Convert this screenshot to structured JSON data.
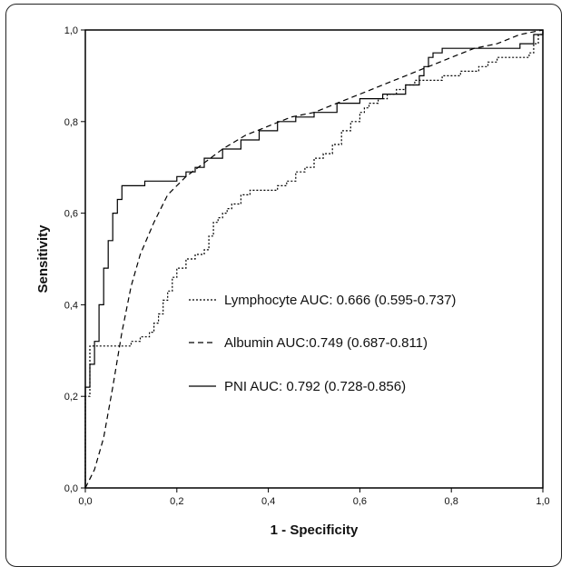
{
  "chart_data": {
    "type": "line",
    "title": "",
    "xlabel": "1 - Specificity",
    "ylabel": "Sensitivity",
    "xlim": [
      0,
      1
    ],
    "ylim": [
      0,
      1
    ],
    "xticks": [
      "0,0",
      "0,2",
      "0,4",
      "0,6",
      "0,8",
      "1,0"
    ],
    "yticks": [
      "0,0",
      "0,2",
      "0,4",
      "0,6",
      "0,8",
      "1,0"
    ],
    "grid": false,
    "legend_position": "center-right",
    "series": [
      {
        "name": "Lymphocyte AUC: 0.666 (0.595-0.737)",
        "style": "dotted",
        "x": [
          0.0,
          0.0,
          0.01,
          0.01,
          0.08,
          0.1,
          0.12,
          0.14,
          0.15,
          0.16,
          0.17,
          0.18,
          0.19,
          0.2,
          0.22,
          0.24,
          0.26,
          0.27,
          0.28,
          0.29,
          0.3,
          0.31,
          0.32,
          0.34,
          0.36,
          0.38,
          0.4,
          0.42,
          0.44,
          0.46,
          0.48,
          0.5,
          0.52,
          0.54,
          0.56,
          0.58,
          0.6,
          0.61,
          0.62,
          0.63,
          0.64,
          0.66,
          0.68,
          0.7,
          0.72,
          0.74,
          0.76,
          0.78,
          0.8,
          0.82,
          0.84,
          0.86,
          0.88,
          0.9,
          0.92,
          0.94,
          0.96,
          0.97,
          0.98,
          0.99,
          1.0
        ],
        "y": [
          0.0,
          0.2,
          0.29,
          0.31,
          0.31,
          0.32,
          0.33,
          0.34,
          0.36,
          0.38,
          0.41,
          0.43,
          0.46,
          0.48,
          0.5,
          0.51,
          0.52,
          0.55,
          0.58,
          0.59,
          0.6,
          0.61,
          0.62,
          0.64,
          0.65,
          0.65,
          0.65,
          0.66,
          0.67,
          0.69,
          0.7,
          0.72,
          0.73,
          0.75,
          0.78,
          0.8,
          0.82,
          0.83,
          0.84,
          0.84,
          0.85,
          0.86,
          0.87,
          0.88,
          0.89,
          0.89,
          0.89,
          0.9,
          0.9,
          0.91,
          0.91,
          0.92,
          0.93,
          0.94,
          0.94,
          0.94,
          0.94,
          0.95,
          0.97,
          0.99,
          1.0
        ]
      },
      {
        "name": "Albumin AUC:0.749 (0.687-0.811)",
        "style": "dashed",
        "x": [
          0.0,
          0.02,
          0.04,
          0.06,
          0.08,
          0.1,
          0.12,
          0.15,
          0.18,
          0.22,
          0.26,
          0.3,
          0.35,
          0.4,
          0.45,
          0.5,
          0.55,
          0.6,
          0.65,
          0.7,
          0.75,
          0.8,
          0.85,
          0.9,
          0.95,
          1.0
        ],
        "y": [
          0.0,
          0.04,
          0.11,
          0.22,
          0.34,
          0.44,
          0.51,
          0.58,
          0.64,
          0.68,
          0.71,
          0.74,
          0.77,
          0.79,
          0.81,
          0.82,
          0.84,
          0.86,
          0.88,
          0.9,
          0.92,
          0.94,
          0.96,
          0.97,
          0.99,
          1.0
        ]
      },
      {
        "name": "PNI AUC: 0.792 (0.728-0.856)",
        "style": "solid",
        "x": [
          0.0,
          0.0,
          0.01,
          0.02,
          0.03,
          0.04,
          0.05,
          0.06,
          0.07,
          0.08,
          0.1,
          0.13,
          0.15,
          0.18,
          0.2,
          0.22,
          0.24,
          0.26,
          0.3,
          0.34,
          0.38,
          0.42,
          0.46,
          0.5,
          0.55,
          0.6,
          0.65,
          0.7,
          0.73,
          0.74,
          0.75,
          0.76,
          0.78,
          0.82,
          0.86,
          0.9,
          0.95,
          0.98,
          1.0
        ],
        "y": [
          0.0,
          0.22,
          0.27,
          0.32,
          0.4,
          0.48,
          0.54,
          0.6,
          0.63,
          0.66,
          0.66,
          0.67,
          0.67,
          0.67,
          0.68,
          0.69,
          0.7,
          0.72,
          0.74,
          0.76,
          0.78,
          0.8,
          0.81,
          0.82,
          0.84,
          0.85,
          0.86,
          0.88,
          0.9,
          0.92,
          0.94,
          0.95,
          0.96,
          0.96,
          0.96,
          0.96,
          0.97,
          0.99,
          1.0
        ]
      }
    ]
  }
}
